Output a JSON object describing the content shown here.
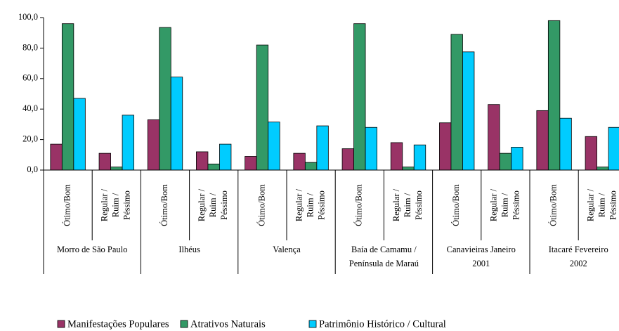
{
  "chart_data": {
    "type": "bar",
    "groups": [
      [
        "Morro de São Paulo"
      ],
      [
        "Ilhéus"
      ],
      [
        "Valença"
      ],
      [
        "Baía de Camamu /",
        "Península de Maraú"
      ],
      [
        "Canavieiras Janeiro",
        "2001"
      ],
      [
        "Itacaré Fevereiro",
        "2002"
      ]
    ],
    "categories": [
      [
        "Ótimo/Bom"
      ],
      [
        "Regular /",
        "Ruim /",
        "Péssimo"
      ],
      [
        "Ótimo/Bom"
      ],
      [
        "Regular /",
        "Ruim /",
        "Péssimo"
      ],
      [
        "Ótimo/Bom"
      ],
      [
        "Regular /",
        "Ruim /",
        "Péssimo"
      ],
      [
        "Ótimo/Bom"
      ],
      [
        "Regular /",
        "Ruim /",
        "Péssimo"
      ],
      [
        "Ótimo/Bom"
      ],
      [
        "Regular /",
        "Ruim /",
        "Péssimo"
      ],
      [
        "Ótimo/Bom"
      ],
      [
        "Regular /",
        "Ruim /",
        "Péssimo"
      ]
    ],
    "series": [
      {
        "name": "Manifestações Populares",
        "color": "#993366",
        "values": [
          17,
          11,
          33,
          12,
          9,
          11,
          14,
          18,
          31,
          43,
          39,
          22
        ]
      },
      {
        "name": "Atrativos Naturais",
        "color": "#339966",
        "values": [
          96,
          2,
          93.5,
          4,
          82,
          5,
          96,
          2,
          89,
          11,
          98,
          2
        ]
      },
      {
        "name": "Patrimônio Histórico / Cultural",
        "color": "#00ccff",
        "values": [
          47,
          36,
          61,
          17,
          31.5,
          29,
          28,
          16.5,
          77.5,
          15,
          34,
          28
        ]
      }
    ],
    "ylim": [
      0,
      100
    ],
    "yticks": [
      {
        "value": 0,
        "label": "0,0"
      },
      {
        "value": 20,
        "label": "20,0"
      },
      {
        "value": 40,
        "label": "40,0"
      },
      {
        "value": 60,
        "label": "60,0"
      },
      {
        "value": 80,
        "label": "80,0"
      },
      {
        "value": 100,
        "label": "100,0"
      }
    ],
    "legend": "bottom"
  }
}
